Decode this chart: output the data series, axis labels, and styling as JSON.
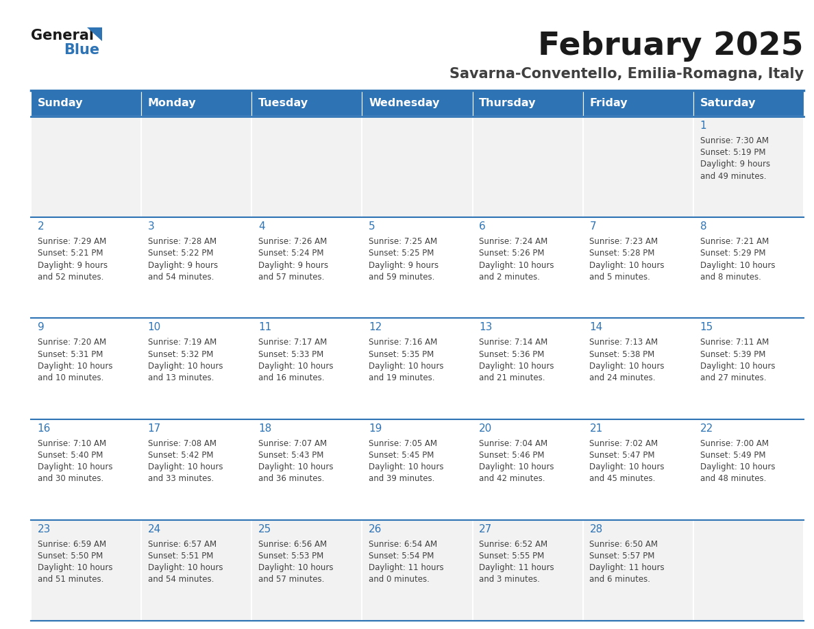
{
  "title": "February 2025",
  "subtitle": "Savarna-Conventello, Emilia-Romagna, Italy",
  "days_of_week": [
    "Sunday",
    "Monday",
    "Tuesday",
    "Wednesday",
    "Thursday",
    "Friday",
    "Saturday"
  ],
  "header_bg": "#2E74B5",
  "header_text": "#FFFFFF",
  "cell_bg_white": "#FFFFFF",
  "cell_bg_gray": "#F2F2F2",
  "border_color": "#2E74B5",
  "day_number_color": "#2E74B5",
  "info_text_color": "#404040",
  "title_color": "#1A1A1A",
  "subtitle_color": "#404040",
  "logo_general_color": "#1A1A1A",
  "logo_blue_color": "#2E74B5",
  "logo_triangle_color": "#2E74B5",
  "calendar": [
    [
      {
        "day": null,
        "info": ""
      },
      {
        "day": null,
        "info": ""
      },
      {
        "day": null,
        "info": ""
      },
      {
        "day": null,
        "info": ""
      },
      {
        "day": null,
        "info": ""
      },
      {
        "day": null,
        "info": ""
      },
      {
        "day": 1,
        "info": "Sunrise: 7:30 AM\nSunset: 5:19 PM\nDaylight: 9 hours\nand 49 minutes."
      }
    ],
    [
      {
        "day": 2,
        "info": "Sunrise: 7:29 AM\nSunset: 5:21 PM\nDaylight: 9 hours\nand 52 minutes."
      },
      {
        "day": 3,
        "info": "Sunrise: 7:28 AM\nSunset: 5:22 PM\nDaylight: 9 hours\nand 54 minutes."
      },
      {
        "day": 4,
        "info": "Sunrise: 7:26 AM\nSunset: 5:24 PM\nDaylight: 9 hours\nand 57 minutes."
      },
      {
        "day": 5,
        "info": "Sunrise: 7:25 AM\nSunset: 5:25 PM\nDaylight: 9 hours\nand 59 minutes."
      },
      {
        "day": 6,
        "info": "Sunrise: 7:24 AM\nSunset: 5:26 PM\nDaylight: 10 hours\nand 2 minutes."
      },
      {
        "day": 7,
        "info": "Sunrise: 7:23 AM\nSunset: 5:28 PM\nDaylight: 10 hours\nand 5 minutes."
      },
      {
        "day": 8,
        "info": "Sunrise: 7:21 AM\nSunset: 5:29 PM\nDaylight: 10 hours\nand 8 minutes."
      }
    ],
    [
      {
        "day": 9,
        "info": "Sunrise: 7:20 AM\nSunset: 5:31 PM\nDaylight: 10 hours\nand 10 minutes."
      },
      {
        "day": 10,
        "info": "Sunrise: 7:19 AM\nSunset: 5:32 PM\nDaylight: 10 hours\nand 13 minutes."
      },
      {
        "day": 11,
        "info": "Sunrise: 7:17 AM\nSunset: 5:33 PM\nDaylight: 10 hours\nand 16 minutes."
      },
      {
        "day": 12,
        "info": "Sunrise: 7:16 AM\nSunset: 5:35 PM\nDaylight: 10 hours\nand 19 minutes."
      },
      {
        "day": 13,
        "info": "Sunrise: 7:14 AM\nSunset: 5:36 PM\nDaylight: 10 hours\nand 21 minutes."
      },
      {
        "day": 14,
        "info": "Sunrise: 7:13 AM\nSunset: 5:38 PM\nDaylight: 10 hours\nand 24 minutes."
      },
      {
        "day": 15,
        "info": "Sunrise: 7:11 AM\nSunset: 5:39 PM\nDaylight: 10 hours\nand 27 minutes."
      }
    ],
    [
      {
        "day": 16,
        "info": "Sunrise: 7:10 AM\nSunset: 5:40 PM\nDaylight: 10 hours\nand 30 minutes."
      },
      {
        "day": 17,
        "info": "Sunrise: 7:08 AM\nSunset: 5:42 PM\nDaylight: 10 hours\nand 33 minutes."
      },
      {
        "day": 18,
        "info": "Sunrise: 7:07 AM\nSunset: 5:43 PM\nDaylight: 10 hours\nand 36 minutes."
      },
      {
        "day": 19,
        "info": "Sunrise: 7:05 AM\nSunset: 5:45 PM\nDaylight: 10 hours\nand 39 minutes."
      },
      {
        "day": 20,
        "info": "Sunrise: 7:04 AM\nSunset: 5:46 PM\nDaylight: 10 hours\nand 42 minutes."
      },
      {
        "day": 21,
        "info": "Sunrise: 7:02 AM\nSunset: 5:47 PM\nDaylight: 10 hours\nand 45 minutes."
      },
      {
        "day": 22,
        "info": "Sunrise: 7:00 AM\nSunset: 5:49 PM\nDaylight: 10 hours\nand 48 minutes."
      }
    ],
    [
      {
        "day": 23,
        "info": "Sunrise: 6:59 AM\nSunset: 5:50 PM\nDaylight: 10 hours\nand 51 minutes."
      },
      {
        "day": 24,
        "info": "Sunrise: 6:57 AM\nSunset: 5:51 PM\nDaylight: 10 hours\nand 54 minutes."
      },
      {
        "day": 25,
        "info": "Sunrise: 6:56 AM\nSunset: 5:53 PM\nDaylight: 10 hours\nand 57 minutes."
      },
      {
        "day": 26,
        "info": "Sunrise: 6:54 AM\nSunset: 5:54 PM\nDaylight: 11 hours\nand 0 minutes."
      },
      {
        "day": 27,
        "info": "Sunrise: 6:52 AM\nSunset: 5:55 PM\nDaylight: 11 hours\nand 3 minutes."
      },
      {
        "day": 28,
        "info": "Sunrise: 6:50 AM\nSunset: 5:57 PM\nDaylight: 11 hours\nand 6 minutes."
      },
      {
        "day": null,
        "info": ""
      }
    ]
  ],
  "fig_width": 11.88,
  "fig_height": 9.18,
  "dpi": 100
}
